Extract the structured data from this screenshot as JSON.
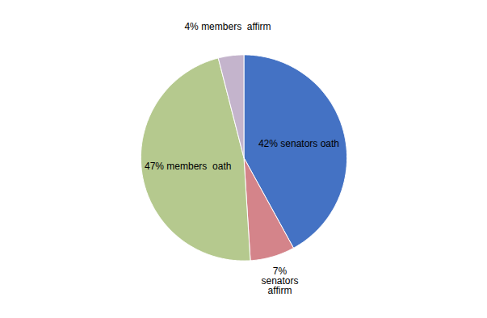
{
  "chart_data": {
    "type": "pie",
    "values": [
      42,
      7,
      47,
      4
    ],
    "value_labels": [
      "42% senators oath",
      "7%\nsenators\naffirm",
      "47% members  oath",
      "4% members  affirm"
    ],
    "colors": [
      "#4472C4",
      "#D4848A",
      "#B5C98E",
      "#C4B4CC"
    ],
    "data_labels": true
  }
}
